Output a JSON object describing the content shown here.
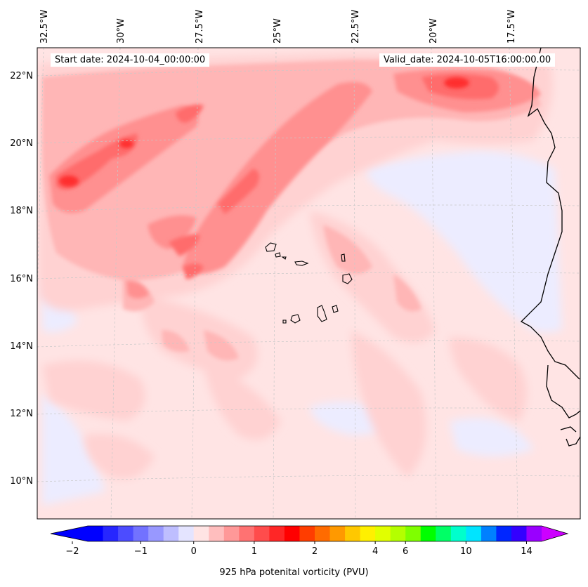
{
  "map": {
    "start_label": "Start date: 2024-10-04_00:00:00",
    "valid_label": "Valid_date: 2024-10-05T16:00:00.00",
    "lon_labels": [
      "32.5°W",
      "30°W",
      "27.5°W",
      "25°W",
      "22.5°W",
      "20°W",
      "17.5°W"
    ],
    "lat_labels": [
      "22°N",
      "20°N",
      "18°N",
      "16°N",
      "14°N",
      "12°N",
      "10°N"
    ]
  },
  "colorbar": {
    "label": "925 hPa potenital vorticity (PVU)",
    "ticks": [
      "−2",
      "−1",
      "0",
      "1",
      "2",
      "4",
      "6",
      "10",
      "14"
    ],
    "colors": [
      "#0000ff",
      "#2626ff",
      "#4c4cff",
      "#7272ff",
      "#9898ff",
      "#bebeff",
      "#e4e4ff",
      "#ffe4e4",
      "#ffbebe",
      "#ff9898",
      "#ff7272",
      "#ff4c4c",
      "#ff2626",
      "#ff0000",
      "#ff3d00",
      "#ff6b00",
      "#ff9900",
      "#ffc800",
      "#fff000",
      "#e1ff00",
      "#b4ff00",
      "#7fff00",
      "#00ff00",
      "#00ff66",
      "#00ffcc",
      "#00e4ff",
      "#0080ff",
      "#0026ff",
      "#3300ff",
      "#9900ff"
    ],
    "under_color": "#0000ff",
    "over_color": "#cc00ff"
  }
}
